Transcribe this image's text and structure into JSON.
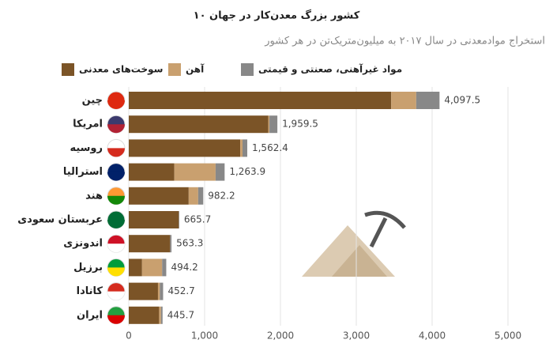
{
  "chart_data": {
    "type": "stacked-bar-horizontal",
    "title": "۱۰ کشور بزرگ معدن‌کار در جهان",
    "subtitle": "استخراج موادمعدنی در سال ۲۰۱۷ به میلیون‌متریک‌تن در هر کشور",
    "categories": [
      "چین",
      "امریکا",
      "روسیه",
      "استرالیا",
      "هند",
      "عربستان سعودی",
      "اندونزی",
      "برزیل",
      "کانادا",
      "ایران"
    ],
    "series": [
      {
        "name": "سوخت‌های معدنی",
        "color": "#7b5427",
        "values": [
          3460,
          1840,
          1470,
          600,
          790,
          660,
          545,
          175,
          385,
          400
        ]
      },
      {
        "name": "آهن",
        "color": "#c9a06f",
        "values": [
          330,
          15,
          30,
          545,
          125,
          0,
          0,
          265,
          25,
          25
        ]
      },
      {
        "name": "مواد غیرآهنی، صعنتی و قیمتی",
        "color": "#888888",
        "values": [
          307.5,
          104.5,
          62.4,
          118.9,
          67.2,
          5.7,
          18.3,
          54.2,
          42.7,
          20.7
        ]
      }
    ],
    "totals": [
      4097.5,
      1959.5,
      1562.4,
      1263.9,
      982.2,
      665.7,
      563.3,
      494.2,
      452.7,
      445.7
    ],
    "total_labels": [
      "4,097.5",
      "1,959.5",
      "1,562.4",
      "1,263.9",
      "982.2",
      "665.7",
      "563.3",
      "494.2",
      "452.7",
      "445.7"
    ],
    "xlim": [
      0,
      5000
    ],
    "xticks": [
      0,
      {
        "value": 1000,
        "label": "1,000"
      },
      {
        "value": 2000,
        "label": "2,000"
      },
      {
        "value": 3000,
        "label": "3,000"
      },
      {
        "value": 4000,
        "label": "4,000"
      },
      {
        "value": 5000,
        "label": "5,000"
      }
    ],
    "grid": true
  }
}
